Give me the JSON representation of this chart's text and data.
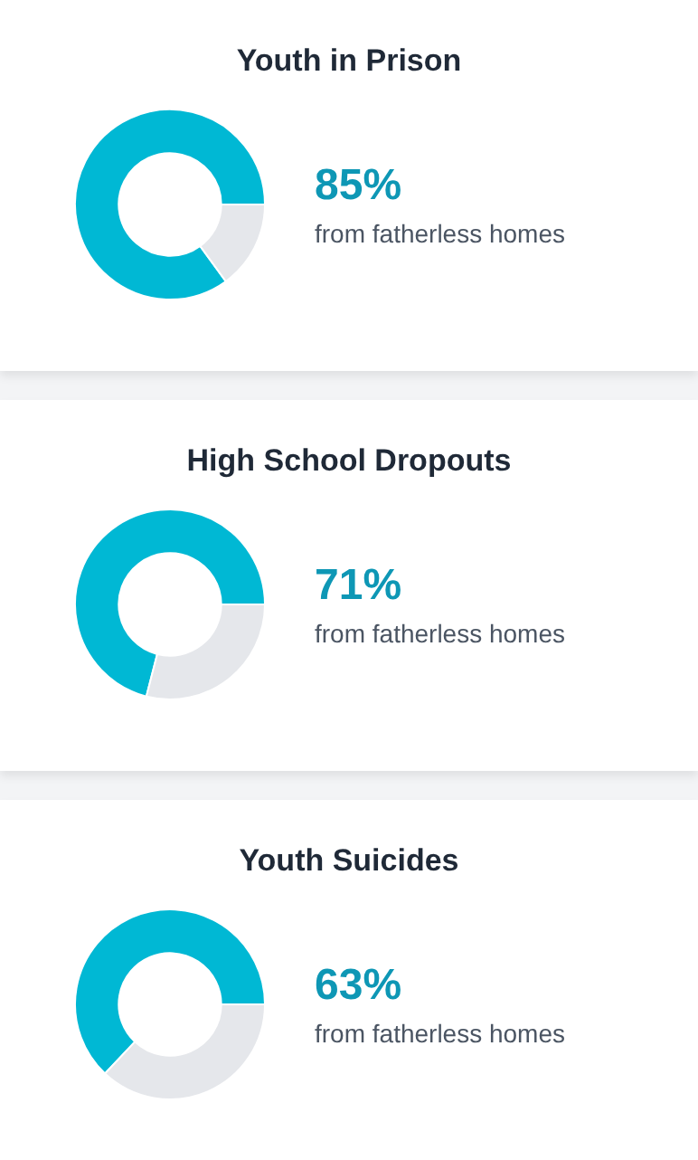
{
  "chart_data": [
    {
      "type": "donut",
      "title": "Youth in Prison",
      "categories": [
        null,
        null
      ],
      "values": [
        85,
        15
      ],
      "colors": [
        "#00b8d4",
        "#e5e7eb"
      ],
      "value_labels": [
        "85%",
        null
      ],
      "annotations": [
        "from fatherless homes"
      ]
    },
    {
      "type": "donut",
      "title": "High School Dropouts",
      "categories": [
        null,
        null
      ],
      "values": [
        71,
        29
      ],
      "colors": [
        "#00b8d4",
        "#e5e7eb"
      ],
      "value_labels": [
        "71%",
        null
      ],
      "annotations": [
        "from fatherless homes"
      ]
    },
    {
      "type": "donut",
      "title": "Youth Suicides",
      "categories": [
        null,
        null
      ],
      "values": [
        63,
        37
      ],
      "colors": [
        "#00b8d4",
        "#e5e7eb"
      ],
      "value_labels": [
        "63%",
        null
      ],
      "annotations": [
        "from fatherless homes"
      ]
    }
  ]
}
